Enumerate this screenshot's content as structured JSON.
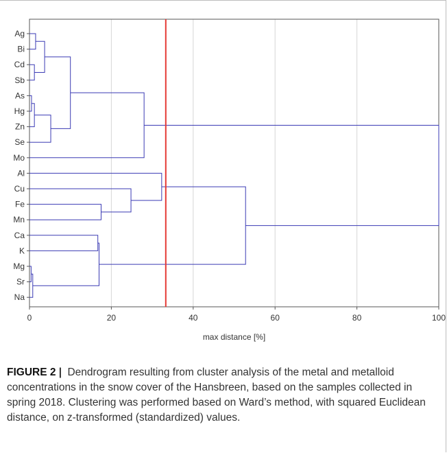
{
  "chart_data": {
    "type": "dendrogram",
    "orientation": "horizontal",
    "xlabel": "max distance [%]",
    "xlim": [
      0,
      100
    ],
    "xticks": [
      0,
      20,
      40,
      60,
      80,
      100
    ],
    "grid": true,
    "leaves": [
      "Ag",
      "Bi",
      "Cd",
      "Sb",
      "As",
      "Hg",
      "Zn",
      "Se",
      "Mo",
      "Al",
      "Cu",
      "Fe",
      "Mn",
      "Ca",
      "K",
      "Mg",
      "Sr",
      "Na"
    ],
    "merges": [
      {
        "a": "Ag",
        "b": "Bi",
        "distance": 1.5
      },
      {
        "a": "Cd",
        "b": "Sb",
        "distance": 1.2
      },
      {
        "a": "Ag-Bi",
        "b": "Cd-Sb",
        "distance": 3.7
      },
      {
        "a": "As",
        "b": "Hg",
        "distance": 0.5
      },
      {
        "a": "As-Hg",
        "b": "Zn",
        "distance": 1.2
      },
      {
        "a": "As-Hg-Zn",
        "b": "Se",
        "distance": 5.2
      },
      {
        "a": "Ag-Bi-Cd-Sb",
        "b": "As-Hg-Zn-Se",
        "distance": 10.0
      },
      {
        "a": "Ag..Se",
        "b": "Mo",
        "distance": 28.0
      },
      {
        "a": "Fe",
        "b": "Mn",
        "distance": 17.5
      },
      {
        "a": "Cu",
        "b": "Fe-Mn",
        "distance": 24.8
      },
      {
        "a": "Al",
        "b": "Cu-Fe-Mn",
        "distance": 32.3
      },
      {
        "a": "Mg",
        "b": "Sr",
        "distance": 0.4
      },
      {
        "a": "Mg-Sr",
        "b": "Na",
        "distance": 0.8
      },
      {
        "a": "Ca",
        "b": "K",
        "distance": 16.7
      },
      {
        "a": "Ca-K",
        "b": "Mg-Sr-Na",
        "distance": 17.0
      },
      {
        "a": "Al-Cu-Fe-Mn",
        "b": "Ca-K-Mg-Sr-Na",
        "distance": 52.8
      },
      {
        "a": "Ag..Mo",
        "b": "Al..Na",
        "distance": 100.0
      }
    ],
    "cutoff_line": 33.3,
    "colors": {
      "branch": "#3a3ab4",
      "cutoff": "#e53935",
      "grid": "#d6d6d6",
      "frame": "#555555"
    }
  },
  "caption": {
    "label": "FIGURE 2",
    "separator": "|",
    "text": "Dendrogram resulting from cluster analysis of the metal and metalloid concentrations in the snow cover of the Hansbreen, based on the samples collected in spring 2018. Clustering was performed based on Ward’s method, with squared Euclidean distance, on z-transformed (standardized) values."
  }
}
